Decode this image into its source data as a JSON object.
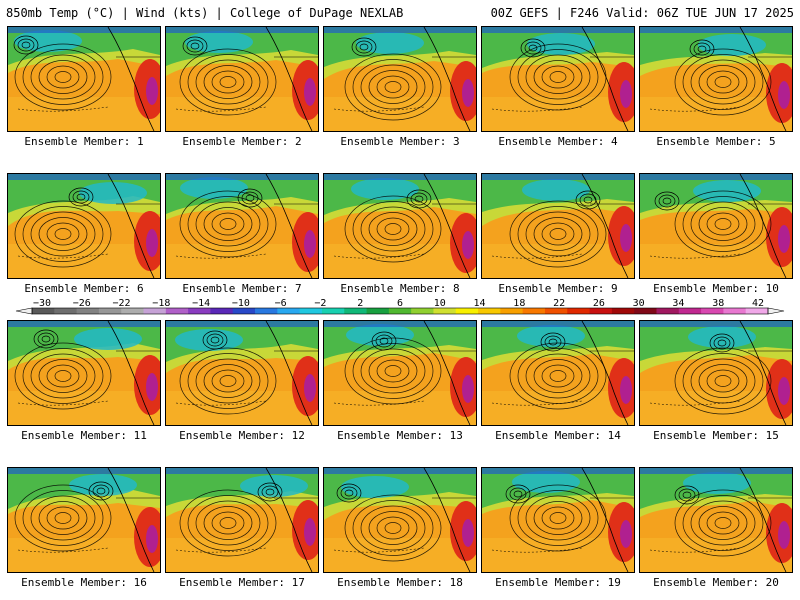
{
  "header": {
    "left_title": "850mb Temp (°C) | Wind (kts) | College of DuPage NEXLAB",
    "right_title": "00Z GEFS | F246 Valid: 06Z TUE JUN 17 2025"
  },
  "members": [
    "Ensemble Member: 1",
    "Ensemble Member: 2",
    "Ensemble Member: 3",
    "Ensemble Member: 4",
    "Ensemble Member: 5",
    "Ensemble Member: 6",
    "Ensemble Member: 7",
    "Ensemble Member: 8",
    "Ensemble Member: 9",
    "Ensemble Member: 10",
    "Ensemble Member: 11",
    "Ensemble Member: 12",
    "Ensemble Member: 13",
    "Ensemble Member: 14",
    "Ensemble Member: 15",
    "Ensemble Member: 16",
    "Ensemble Member: 17",
    "Ensemble Member: 18",
    "Ensemble Member: 19",
    "Ensemble Member: 20"
  ],
  "colorbar": {
    "tick_labels": [
      "−30",
      "−26",
      "−22",
      "−18",
      "−14",
      "−10",
      "−6",
      "−2",
      "2",
      "6",
      "10",
      "14",
      "18",
      "22",
      "26",
      "30",
      "34",
      "38",
      "42"
    ],
    "colors": [
      "#5a5a5a",
      "#6e6e6e",
      "#828282",
      "#979797",
      "#adadad",
      "#c6a2d6",
      "#b060c8",
      "#8a3cc0",
      "#5a28b8",
      "#2848c8",
      "#2878e0",
      "#28a8f0",
      "#20c8e0",
      "#18d0b0",
      "#10b878",
      "#18a040",
      "#50b830",
      "#90d030",
      "#d0e030",
      "#f8f000",
      "#f8c800",
      "#f8a000",
      "#f87800",
      "#f05000",
      "#e02800",
      "#c81010",
      "#a00808",
      "#800818",
      "#a01860",
      "#c02890",
      "#d848b0",
      "#e878d0",
      "#f0a8e8"
    ]
  }
}
